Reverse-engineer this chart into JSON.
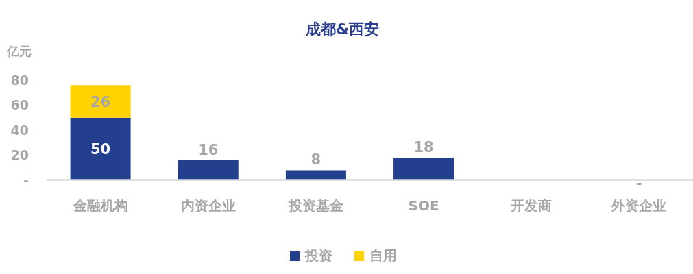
{
  "chart_data": {
    "type": "bar",
    "title": "成都&西安",
    "ylabel": "亿元",
    "categories": [
      "金融机构",
      "内资企业",
      "投资基金",
      "SOE",
      "开发商",
      "外资企业"
    ],
    "stacked": true,
    "series": [
      {
        "name": "投资",
        "color": "#243f8d",
        "values": [
          50,
          16,
          8,
          18,
          null,
          0
        ],
        "value_labels": [
          "50",
          "16",
          "8",
          "18",
          null,
          "-"
        ]
      },
      {
        "name": "自用",
        "color": "#ffd200",
        "values": [
          26,
          null,
          null,
          null,
          null,
          null
        ],
        "value_labels": [
          "26",
          null,
          null,
          null,
          null,
          null
        ]
      }
    ],
    "ylim": [
      0,
      80
    ],
    "yticks": [
      {
        "value": 0,
        "label": "-"
      },
      20,
      40,
      60,
      80
    ],
    "legend": "bottom"
  }
}
